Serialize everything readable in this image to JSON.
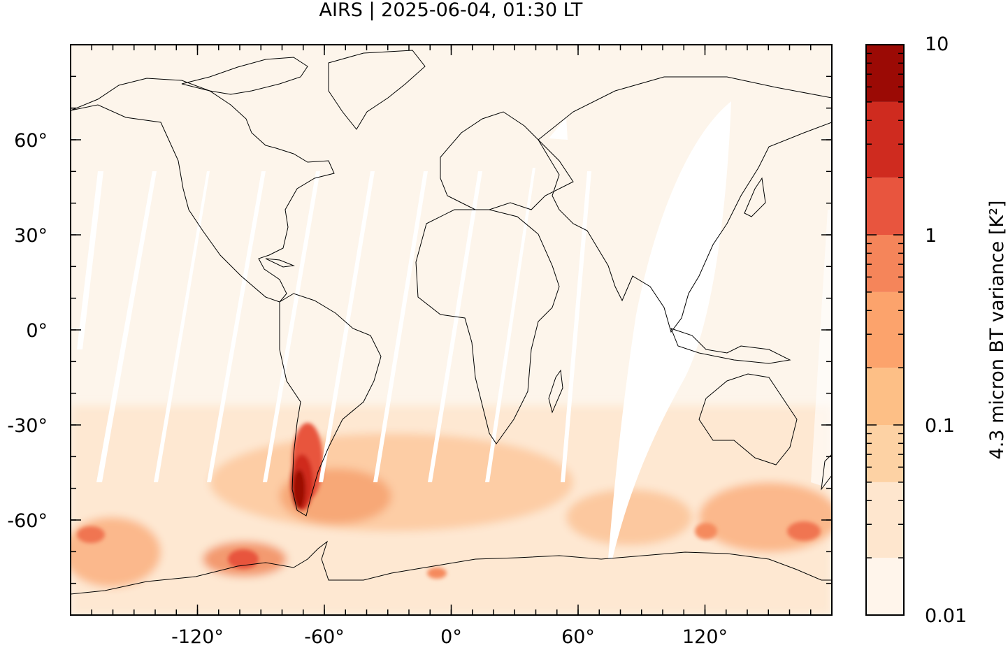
{
  "title": "AIRS | 2025-06-04, 01:30 LT",
  "map": {
    "projection": "plate-carree",
    "lon_range": [
      -180,
      180
    ],
    "lat_range": [
      -90,
      90
    ],
    "lon_ticks": [
      {
        "value": -120,
        "label": "-120°"
      },
      {
        "value": -60,
        "label": "-60°"
      },
      {
        "value": 0,
        "label": "0°"
      },
      {
        "value": 60,
        "label": "60°"
      },
      {
        "value": 120,
        "label": "120°"
      }
    ],
    "lat_ticks": [
      {
        "value": 60,
        "label": "60°"
      },
      {
        "value": 30,
        "label": "30°"
      },
      {
        "value": 0,
        "label": "0°"
      },
      {
        "value": -30,
        "label": "-30°"
      },
      {
        "value": -60,
        "label": "-60°"
      }
    ],
    "background_color": "#fdf5eb",
    "coastline_color": "#000000"
  },
  "colorbar": {
    "label": "4.3 micron BT variance [K²]",
    "scale": "log",
    "range": [
      0.01,
      10
    ],
    "tick_labels": [
      "10",
      "1",
      "0.1",
      "0.01"
    ],
    "bins": [
      {
        "from": 0.01,
        "to": 0.02,
        "color": "#fff5eb"
      },
      {
        "from": 0.02,
        "to": 0.05,
        "color": "#fee6ce"
      },
      {
        "from": 0.05,
        "to": 0.1,
        "color": "#fdd2a4"
      },
      {
        "from": 0.1,
        "to": 0.2,
        "color": "#fdbf86"
      },
      {
        "from": 0.2,
        "to": 0.5,
        "color": "#fca36c"
      },
      {
        "from": 0.5,
        "to": 1,
        "color": "#f5855a"
      },
      {
        "from": 1,
        "to": 2,
        "color": "#e8553e"
      },
      {
        "from": 2,
        "to": 5,
        "color": "#cf2b1f"
      },
      {
        "from": 5,
        "to": 10,
        "color": "#9b0a05"
      }
    ]
  },
  "features": {
    "data_gaps": "white orbital swath gaps",
    "hotspot": "Southern Andes / Patagonia, high variance (>5 K²)"
  }
}
